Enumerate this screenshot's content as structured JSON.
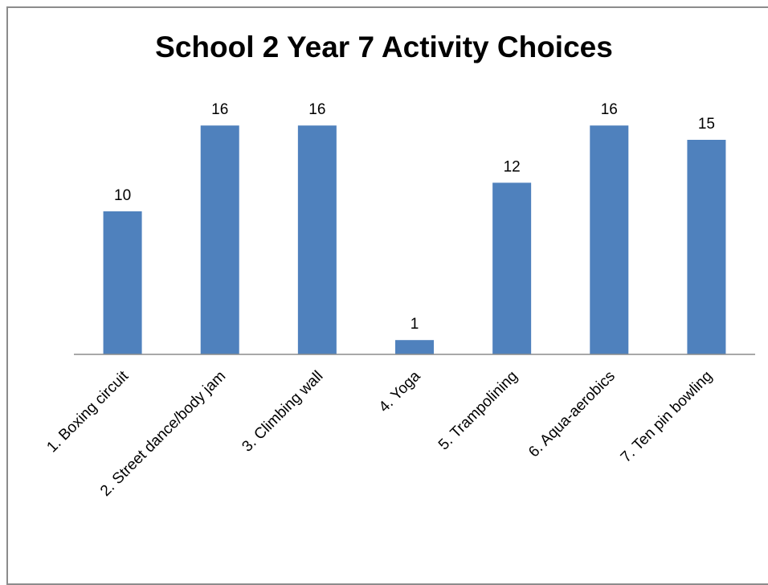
{
  "chart_data": {
    "type": "bar",
    "title": "School 2 Year 7 Activity Choices",
    "categories": [
      "1. Boxing circuit",
      "2. Street dance/body jam",
      "3. Climbing wall",
      "4. Yoga",
      "5. Trampolining",
      "6. Aqua-aerobics",
      "7. Ten pin bowling"
    ],
    "values": [
      10,
      16,
      16,
      1,
      12,
      16,
      15
    ],
    "xlabel": "",
    "ylabel": "",
    "ylim": [
      0,
      16
    ],
    "grid": false,
    "legend": "none",
    "data_labels": true,
    "bar_color": "#4F81BD"
  }
}
